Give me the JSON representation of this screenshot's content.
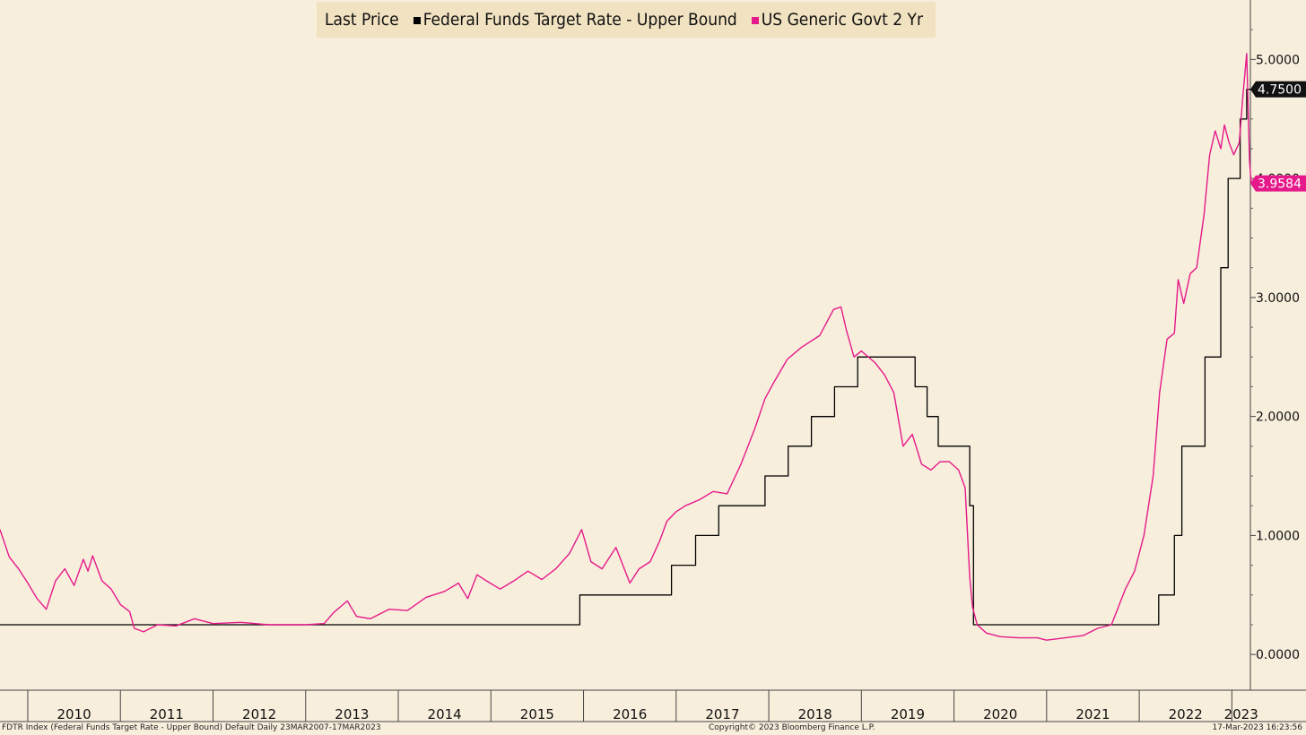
{
  "legend": {
    "title": "Last Price",
    "items": [
      {
        "name": "Federal Funds Target Rate - Upper Bound",
        "color": "#000000"
      },
      {
        "name": "US Generic Govt 2 Yr",
        "color": "#e5198a"
      }
    ]
  },
  "footer": {
    "left": "FDTR Index (Federal Funds Target Rate - Upper Bound) Default  Daily 23MAR2007-17MAR2023",
    "center": "Copyright© 2023 Bloomberg Finance L.P.",
    "right": "17-Mar-2023 16:23:56"
  },
  "chart_data": {
    "type": "line",
    "title": "",
    "xlabel": "",
    "ylabel": "",
    "x_tick_labels": [
      "2010",
      "2011",
      "2012",
      "2013",
      "2014",
      "2015",
      "2016",
      "2017",
      "2018",
      "2019",
      "2020",
      "2021",
      "2022",
      "2023"
    ],
    "y_tick_labels": [
      "0.0000",
      "1.0000",
      "2.0000",
      "3.0000",
      "4.0000",
      "5.0000"
    ],
    "xlim": [
      2009.7,
      2023.2
    ],
    "ylim": [
      -0.3,
      5.5
    ],
    "grid": false,
    "legend_position": "top",
    "last_values": [
      {
        "series": "Federal Funds Target Rate - Upper Bound",
        "label": "4.7500",
        "value": 4.75,
        "color": "#111111"
      },
      {
        "series": "US Generic Govt 2 Yr",
        "label": "3.9584",
        "value": 3.9584,
        "color": "#e5198a"
      }
    ],
    "series": [
      {
        "name": "Federal Funds Target Rate - Upper Bound",
        "color": "#000000",
        "step": true,
        "points": [
          [
            2009.7,
            0.25
          ],
          [
            2015.96,
            0.5
          ],
          [
            2016.95,
            0.75
          ],
          [
            2017.21,
            1.0
          ],
          [
            2017.46,
            1.25
          ],
          [
            2017.96,
            1.5
          ],
          [
            2018.21,
            1.75
          ],
          [
            2018.46,
            2.0
          ],
          [
            2018.71,
            2.25
          ],
          [
            2018.96,
            2.5
          ],
          [
            2019.58,
            2.25
          ],
          [
            2019.71,
            2.0
          ],
          [
            2019.83,
            1.75
          ],
          [
            2020.17,
            1.25
          ],
          [
            2020.21,
            0.25
          ],
          [
            2022.21,
            0.5
          ],
          [
            2022.38,
            1.0
          ],
          [
            2022.46,
            1.75
          ],
          [
            2022.71,
            2.5
          ],
          [
            2022.88,
            3.25
          ],
          [
            2022.96,
            4.0
          ],
          [
            2023.09,
            4.5
          ],
          [
            2023.16,
            4.75
          ],
          [
            2023.21,
            4.75
          ]
        ]
      },
      {
        "name": "US Generic Govt 2 Yr",
        "color": "#e5198a",
        "step": false,
        "points": [
          [
            2009.7,
            1.05
          ],
          [
            2009.8,
            0.82
          ],
          [
            2009.9,
            0.72
          ],
          [
            2010.0,
            0.6
          ],
          [
            2010.1,
            0.47
          ],
          [
            2010.2,
            0.38
          ],
          [
            2010.3,
            0.62
          ],
          [
            2010.4,
            0.72
          ],
          [
            2010.5,
            0.58
          ],
          [
            2010.6,
            0.8
          ],
          [
            2010.65,
            0.7
          ],
          [
            2010.7,
            0.83
          ],
          [
            2010.8,
            0.62
          ],
          [
            2010.9,
            0.55
          ],
          [
            2011.0,
            0.42
          ],
          [
            2011.1,
            0.36
          ],
          [
            2011.15,
            0.22
          ],
          [
            2011.25,
            0.19
          ],
          [
            2011.4,
            0.25
          ],
          [
            2011.6,
            0.24
          ],
          [
            2011.8,
            0.3
          ],
          [
            2012.0,
            0.26
          ],
          [
            2012.3,
            0.27
          ],
          [
            2012.6,
            0.25
          ],
          [
            2013.0,
            0.25
          ],
          [
            2013.2,
            0.26
          ],
          [
            2013.3,
            0.35
          ],
          [
            2013.45,
            0.45
          ],
          [
            2013.55,
            0.32
          ],
          [
            2013.7,
            0.3
          ],
          [
            2013.9,
            0.38
          ],
          [
            2014.1,
            0.37
          ],
          [
            2014.3,
            0.48
          ],
          [
            2014.5,
            0.53
          ],
          [
            2014.65,
            0.6
          ],
          [
            2014.75,
            0.47
          ],
          [
            2014.85,
            0.67
          ],
          [
            2014.95,
            0.62
          ],
          [
            2015.1,
            0.55
          ],
          [
            2015.25,
            0.62
          ],
          [
            2015.4,
            0.7
          ],
          [
            2015.55,
            0.63
          ],
          [
            2015.7,
            0.72
          ],
          [
            2015.85,
            0.85
          ],
          [
            2015.98,
            1.05
          ],
          [
            2016.08,
            0.78
          ],
          [
            2016.2,
            0.72
          ],
          [
            2016.35,
            0.9
          ],
          [
            2016.5,
            0.6
          ],
          [
            2016.6,
            0.72
          ],
          [
            2016.72,
            0.78
          ],
          [
            2016.82,
            0.95
          ],
          [
            2016.9,
            1.12
          ],
          [
            2017.0,
            1.2
          ],
          [
            2017.1,
            1.25
          ],
          [
            2017.25,
            1.3
          ],
          [
            2017.4,
            1.37
          ],
          [
            2017.55,
            1.35
          ],
          [
            2017.7,
            1.6
          ],
          [
            2017.85,
            1.9
          ],
          [
            2017.96,
            2.15
          ],
          [
            2018.05,
            2.28
          ],
          [
            2018.2,
            2.48
          ],
          [
            2018.35,
            2.58
          ],
          [
            2018.55,
            2.68
          ],
          [
            2018.7,
            2.9
          ],
          [
            2018.78,
            2.92
          ],
          [
            2018.84,
            2.72
          ],
          [
            2018.92,
            2.5
          ],
          [
            2019.0,
            2.55
          ],
          [
            2019.15,
            2.45
          ],
          [
            2019.25,
            2.35
          ],
          [
            2019.35,
            2.2
          ],
          [
            2019.45,
            1.75
          ],
          [
            2019.55,
            1.85
          ],
          [
            2019.65,
            1.6
          ],
          [
            2019.75,
            1.55
          ],
          [
            2019.85,
            1.62
          ],
          [
            2019.95,
            1.62
          ],
          [
            2020.05,
            1.55
          ],
          [
            2020.12,
            1.4
          ],
          [
            2020.17,
            0.65
          ],
          [
            2020.2,
            0.4
          ],
          [
            2020.25,
            0.25
          ],
          [
            2020.35,
            0.18
          ],
          [
            2020.5,
            0.15
          ],
          [
            2020.7,
            0.14
          ],
          [
            2020.9,
            0.14
          ],
          [
            2021.0,
            0.12
          ],
          [
            2021.2,
            0.14
          ],
          [
            2021.4,
            0.16
          ],
          [
            2021.55,
            0.22
          ],
          [
            2021.7,
            0.25
          ],
          [
            2021.85,
            0.55
          ],
          [
            2021.95,
            0.7
          ],
          [
            2022.05,
            1.0
          ],
          [
            2022.15,
            1.5
          ],
          [
            2022.22,
            2.2
          ],
          [
            2022.3,
            2.65
          ],
          [
            2022.38,
            2.7
          ],
          [
            2022.42,
            3.15
          ],
          [
            2022.48,
            2.95
          ],
          [
            2022.55,
            3.2
          ],
          [
            2022.62,
            3.25
          ],
          [
            2022.7,
            3.7
          ],
          [
            2022.76,
            4.2
          ],
          [
            2022.82,
            4.4
          ],
          [
            2022.88,
            4.25
          ],
          [
            2022.92,
            4.45
          ],
          [
            2022.97,
            4.3
          ],
          [
            2023.02,
            4.2
          ],
          [
            2023.08,
            4.3
          ],
          [
            2023.12,
            4.7
          ],
          [
            2023.16,
            5.05
          ],
          [
            2023.19,
            4.15
          ],
          [
            2023.21,
            3.9584
          ]
        ]
      }
    ]
  }
}
